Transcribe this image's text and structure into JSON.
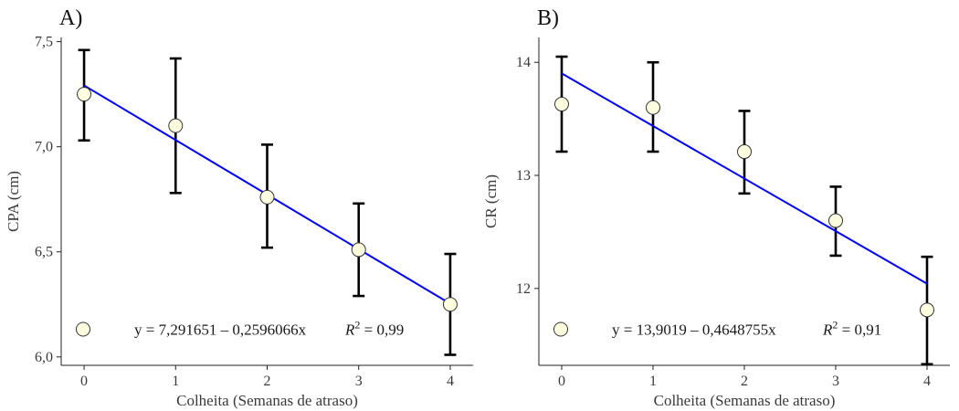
{
  "chart_data": [
    {
      "type": "scatter",
      "panel_label": "A)",
      "xlabel": "Colheita (Semanas de atraso)",
      "ylabel": "CPA (cm)",
      "xlim": [
        -0.25,
        4.25
      ],
      "ylim": [
        5.96,
        7.52
      ],
      "x_ticks": [
        0,
        1,
        2,
        3,
        4
      ],
      "x_tick_labels": [
        "0",
        "1",
        "2",
        "3",
        "4"
      ],
      "y_ticks": [
        6.0,
        6.5,
        7.0,
        7.5
      ],
      "y_tick_labels": [
        "6,0",
        "6,5",
        "7,0",
        "7,5"
      ],
      "grid": false,
      "points": [
        {
          "x": 0,
          "y": 7.25,
          "err_low": 7.03,
          "err_high": 7.46
        },
        {
          "x": 1,
          "y": 7.1,
          "err_low": 6.78,
          "err_high": 7.42
        },
        {
          "x": 2,
          "y": 6.76,
          "err_low": 6.52,
          "err_high": 7.01
        },
        {
          "x": 3,
          "y": 6.51,
          "err_low": 6.29,
          "err_high": 6.73
        },
        {
          "x": 4,
          "y": 6.25,
          "err_low": 6.01,
          "err_high": 6.49
        }
      ],
      "fit": {
        "intercept": 7.291651,
        "slope": -0.2596066,
        "color": "#0000ff"
      },
      "legend": {
        "equation": "y = 7,291651 – 0,2596066x",
        "r2_symbol": "R",
        "r2_sup": "2",
        "r2_value": " = 0,99",
        "placement": "bottom-left"
      },
      "marker_color": "#fdfde0"
    },
    {
      "type": "scatter",
      "panel_label": "B)",
      "xlabel": "Colheita (Semanas de atraso)",
      "ylabel": "CR (cm)",
      "xlim": [
        -0.25,
        4.25
      ],
      "ylim": [
        11.32,
        14.22
      ],
      "x_ticks": [
        0,
        1,
        2,
        3,
        4
      ],
      "x_tick_labels": [
        "0",
        "1",
        "2",
        "3",
        "4"
      ],
      "y_ticks": [
        12,
        13,
        14
      ],
      "y_tick_labels": [
        "12",
        "13",
        "14"
      ],
      "grid": false,
      "points": [
        {
          "x": 0,
          "y": 13.63,
          "err_low": 13.21,
          "err_high": 14.05
        },
        {
          "x": 1,
          "y": 13.6,
          "err_low": 13.21,
          "err_high": 14.0
        },
        {
          "x": 2,
          "y": 13.21,
          "err_low": 12.84,
          "err_high": 13.57
        },
        {
          "x": 3,
          "y": 12.6,
          "err_low": 12.29,
          "err_high": 12.9
        },
        {
          "x": 4,
          "y": 11.81,
          "err_low": 11.33,
          "err_high": 12.28
        }
      ],
      "fit": {
        "intercept": 13.9019,
        "slope": -0.4648755,
        "color": "#0000ff"
      },
      "legend": {
        "equation": "y = 13,9019 – 0,4648755x",
        "r2_symbol": "R",
        "r2_sup": "2",
        "r2_value": " = 0,91",
        "placement": "bottom-left"
      },
      "marker_color": "#fdfde0"
    }
  ]
}
